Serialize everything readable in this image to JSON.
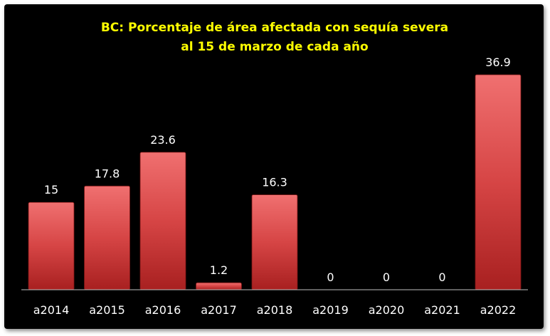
{
  "chart_data": {
    "type": "bar",
    "title_lines": [
      "BC: Porcentaje de área afectada con sequía severa",
      "al 15 de marzo de cada año"
    ],
    "categories": [
      "a2014",
      "a2015",
      "a2016",
      "a2017",
      "a2018",
      "a2019",
      "a2020",
      "a2021",
      "a2022"
    ],
    "values": [
      15,
      17.8,
      23.6,
      1.2,
      16.3,
      0,
      0,
      0,
      36.9
    ],
    "value_labels": [
      "15",
      "17.8",
      "23.6",
      "1.2",
      "16.3",
      "0",
      "0",
      "0",
      "36.9"
    ],
    "xlabel": "",
    "ylabel": "",
    "ylim": [
      0,
      36.9
    ],
    "grid": false,
    "legend": "none",
    "colors": {
      "background": "#000000",
      "bar_top": "#f07070",
      "bar_mid": "#d64545",
      "bar_bottom": "#a82020",
      "title": "#ffff00",
      "labels": "#ffffff",
      "axis": "#bfbfbf"
    }
  }
}
